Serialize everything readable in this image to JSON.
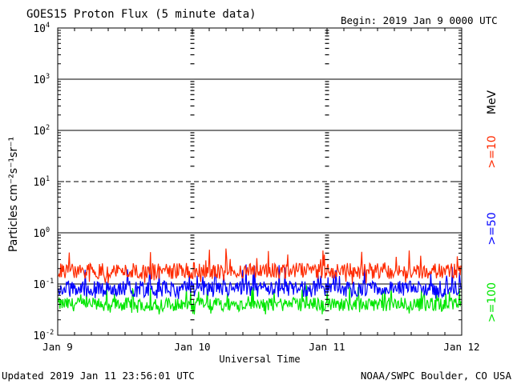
{
  "header": {
    "title": "GOES15 Proton Flux (5 minute data)",
    "begin": "Begin: 2019 Jan 9 0000 UTC"
  },
  "footer": {
    "updated": "Updated 2019 Jan 11 23:56:01 UTC",
    "credit": "NOAA/SWPC Boulder, CO USA"
  },
  "colors": {
    "ge10": "#ff2a00",
    "ge50": "#0000ff",
    "ge100": "#00e600",
    "axis": "#000000"
  },
  "chart_data": {
    "type": "line",
    "title": "GOES15 Proton Flux (5 minute data)",
    "xlabel": "Universal Time",
    "ylabel": "Particles cm⁻²s⁻¹sr⁻¹",
    "yscale": "log",
    "ylim": [
      0.01,
      10000
    ],
    "xlim": [
      "Jan 9",
      "Jan 12"
    ],
    "x_ticks": [
      "Jan 9",
      "Jan 10",
      "Jan 11",
      "Jan 12"
    ],
    "y_ticks": [
      {
        "base": "10",
        "exp": "4"
      },
      {
        "base": "10",
        "exp": "3"
      },
      {
        "base": "10",
        "exp": "2"
      },
      {
        "base": "10",
        "exp": "1"
      },
      {
        "base": "10",
        "exp": "0"
      },
      {
        "base": "10",
        "exp": "-1"
      },
      {
        "base": "10",
        "exp": "-2"
      }
    ],
    "reference_lines": [
      {
        "value": 1000,
        "style": "solid"
      },
      {
        "value": 100,
        "style": "solid"
      },
      {
        "value": 10,
        "style": "dashed"
      },
      {
        "value": 1,
        "style": "solid"
      },
      {
        "value": 0.1,
        "style": "solid"
      }
    ],
    "legend_unit": "MeV",
    "series": [
      {
        "name": ">=10",
        "color": "#ff2a00",
        "typical": 0.18,
        "range": [
          0.1,
          0.5
        ]
      },
      {
        "name": ">=50",
        "color": "#0000ff",
        "typical": 0.08,
        "range": [
          0.05,
          0.25
        ]
      },
      {
        "name": ">=100",
        "color": "#00e600",
        "typical": 0.04,
        "range": [
          0.025,
          0.1
        ]
      }
    ]
  }
}
